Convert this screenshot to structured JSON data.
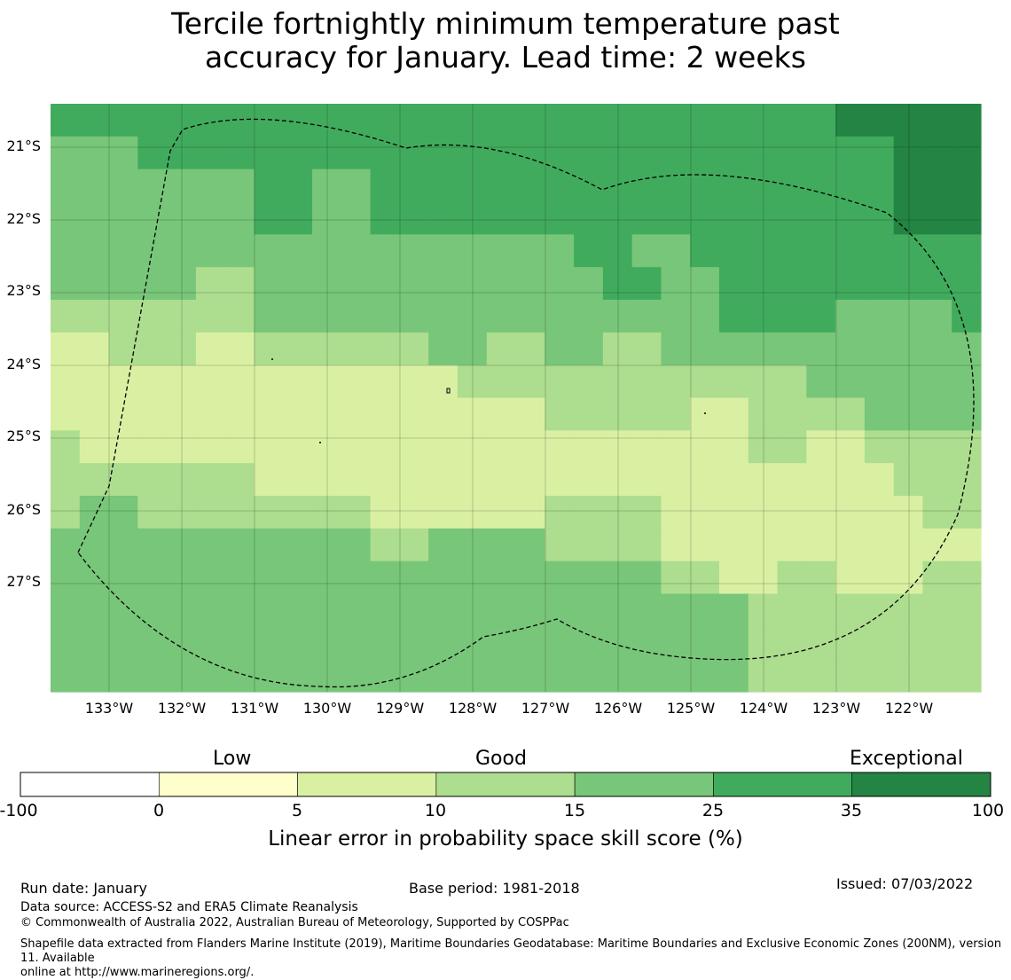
{
  "title_line1": "Tercile fortnightly minimum temperature past",
  "title_line2": "accuracy for January. Lead time: 2 weeks",
  "map": {
    "lat_labels": [
      "21°S",
      "22°S",
      "23°S",
      "24°S",
      "25°S",
      "26°S",
      "27°S"
    ],
    "lon_labels": [
      "133°W",
      "132°W",
      "131°W",
      "130°W",
      "129°W",
      "128°W",
      "127°W",
      "126°W",
      "125°W",
      "124°W",
      "123°W",
      "122°W"
    ],
    "grid_values": [
      [
        3,
        3,
        3,
        3,
        3,
        3,
        3,
        3,
        3,
        3,
        3,
        3,
        3,
        3,
        3,
        3,
        3,
        3,
        3,
        3,
        3,
        3,
        3,
        3,
        3,
        3,
        3,
        4,
        4,
        4,
        4,
        4
      ],
      [
        2,
        2,
        2,
        3,
        3,
        3,
        3,
        3,
        3,
        3,
        3,
        3,
        3,
        3,
        3,
        3,
        3,
        3,
        3,
        3,
        3,
        3,
        3,
        3,
        3,
        3,
        3,
        3,
        3,
        4,
        4,
        4
      ],
      [
        2,
        2,
        2,
        2,
        2,
        2,
        2,
        3,
        3,
        2,
        2,
        3,
        3,
        3,
        3,
        3,
        3,
        3,
        3,
        3,
        3,
        3,
        3,
        3,
        3,
        3,
        3,
        3,
        3,
        4,
        4,
        4
      ],
      [
        2,
        2,
        2,
        2,
        2,
        2,
        2,
        3,
        3,
        2,
        2,
        3,
        3,
        3,
        3,
        3,
        3,
        3,
        3,
        3,
        3,
        3,
        3,
        3,
        3,
        3,
        3,
        3,
        3,
        4,
        4,
        4
      ],
      [
        2,
        2,
        2,
        2,
        2,
        2,
        2,
        2,
        2,
        2,
        2,
        2,
        2,
        2,
        2,
        2,
        2,
        2,
        3,
        3,
        2,
        2,
        3,
        3,
        3,
        3,
        3,
        3,
        3,
        3,
        3,
        3
      ],
      [
        2,
        2,
        2,
        2,
        2,
        1,
        1,
        2,
        2,
        2,
        2,
        2,
        2,
        2,
        2,
        2,
        2,
        2,
        2,
        3,
        3,
        2,
        2,
        3,
        3,
        3,
        3,
        3,
        3,
        3,
        3,
        3
      ],
      [
        1,
        1,
        1,
        1,
        1,
        1,
        1,
        2,
        2,
        2,
        2,
        2,
        2,
        2,
        2,
        2,
        2,
        2,
        2,
        2,
        2,
        2,
        2,
        3,
        3,
        3,
        3,
        2,
        2,
        2,
        2,
        3
      ],
      [
        0,
        0,
        1,
        1,
        1,
        0,
        0,
        1,
        1,
        1,
        1,
        1,
        1,
        2,
        2,
        1,
        1,
        2,
        2,
        1,
        1,
        2,
        2,
        2,
        2,
        2,
        2,
        2,
        2,
        2,
        2,
        2
      ],
      [
        0,
        0,
        0,
        0,
        0,
        0,
        0,
        0,
        0,
        0,
        0,
        0,
        0,
        0,
        1,
        1,
        1,
        1,
        1,
        1,
        1,
        1,
        1,
        1,
        1,
        1,
        2,
        2,
        2,
        2,
        2,
        2
      ],
      [
        0,
        0,
        0,
        0,
        0,
        0,
        0,
        0,
        0,
        0,
        0,
        0,
        0,
        0,
        0,
        0,
        0,
        1,
        1,
        1,
        1,
        1,
        0,
        0,
        1,
        1,
        1,
        1,
        2,
        2,
        2,
        2
      ],
      [
        1,
        0,
        0,
        0,
        0,
        0,
        0,
        0,
        0,
        0,
        0,
        0,
        0,
        0,
        0,
        0,
        0,
        0,
        0,
        0,
        0,
        0,
        0,
        0,
        1,
        1,
        0,
        0,
        1,
        1,
        1,
        1
      ],
      [
        1,
        1,
        1,
        1,
        1,
        1,
        1,
        0,
        0,
        0,
        0,
        0,
        0,
        0,
        0,
        0,
        0,
        0,
        0,
        0,
        0,
        0,
        0,
        0,
        0,
        0,
        0,
        0,
        0,
        1,
        1,
        1
      ],
      [
        1,
        2,
        2,
        1,
        1,
        1,
        1,
        1,
        1,
        1,
        1,
        0,
        0,
        0,
        0,
        0,
        0,
        1,
        1,
        1,
        1,
        0,
        0,
        0,
        0,
        0,
        0,
        0,
        0,
        0,
        1,
        1
      ],
      [
        2,
        2,
        2,
        2,
        2,
        2,
        2,
        2,
        2,
        2,
        2,
        1,
        1,
        2,
        2,
        2,
        2,
        1,
        1,
        1,
        1,
        0,
        0,
        0,
        0,
        0,
        0,
        0,
        0,
        0,
        0,
        0
      ],
      [
        2,
        2,
        2,
        2,
        2,
        2,
        2,
        2,
        2,
        2,
        2,
        2,
        2,
        2,
        2,
        2,
        2,
        2,
        2,
        2,
        2,
        1,
        1,
        0,
        0,
        1,
        1,
        0,
        0,
        0,
        1,
        1
      ],
      [
        2,
        2,
        2,
        2,
        2,
        2,
        2,
        2,
        2,
        2,
        2,
        2,
        2,
        2,
        2,
        2,
        2,
        2,
        2,
        2,
        2,
        2,
        2,
        2,
        1,
        1,
        1,
        1,
        1,
        1,
        1,
        1
      ],
      [
        2,
        2,
        2,
        2,
        2,
        2,
        2,
        2,
        2,
        2,
        2,
        2,
        2,
        2,
        2,
        2,
        2,
        2,
        2,
        2,
        2,
        2,
        2,
        2,
        1,
        1,
        1,
        1,
        1,
        1,
        1,
        1
      ],
      [
        2,
        2,
        2,
        2,
        2,
        2,
        2,
        2,
        2,
        2,
        2,
        2,
        2,
        2,
        2,
        2,
        2,
        2,
        2,
        2,
        2,
        2,
        2,
        2,
        1,
        1,
        1,
        1,
        1,
        1,
        1,
        1
      ]
    ]
  },
  "colorbar": {
    "category_labels": [
      "Low",
      "Good",
      "Exceptional"
    ],
    "ticks": [
      "-100",
      "0",
      "5",
      "10",
      "15",
      "25",
      "35",
      "100"
    ],
    "colors": [
      "#ffffff",
      "#ffffcc",
      "#d9f0a3",
      "#addd8e",
      "#78c679",
      "#41ab5d",
      "#238443"
    ],
    "title": "Linear error in probability space skill score (%)"
  },
  "footer": {
    "run_date": "Run date: January",
    "base_period": "Base period: 1981-2018",
    "issued": "Issued: 07/03/2022",
    "data_source": "Data source: ACCESS-S2 and ERA5 Climate Reanalysis",
    "copyright": "© Commonwealth of Australia 2022, Australian Bureau of Meteorology, Supported by COSPPac",
    "shapefile_line1": "Shapefile data extracted from Flanders Marine Institute (2019), Maritime Boundaries Geodatabase: Maritime Boundaries and Exclusive Economic Zones (200NM), version 11. Available",
    "shapefile_line2": "online at http://www.marineregions.org/."
  }
}
